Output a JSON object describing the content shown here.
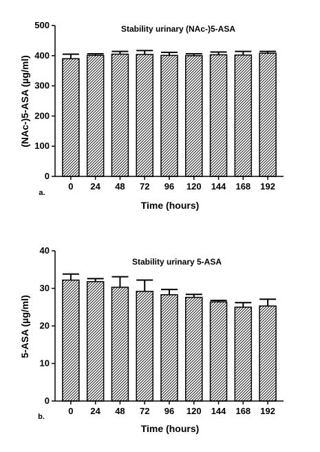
{
  "chart_data": [
    {
      "type": "bar",
      "panel_label": "a.",
      "title": "Stability urinary (NAc-)5-ASA",
      "xlabel": "Time (hours)",
      "ylabel": "(NAc-)5-ASA (µg/ml)",
      "categories": [
        "0",
        "24",
        "48",
        "72",
        "96",
        "120",
        "144",
        "168",
        "192"
      ],
      "values": [
        390,
        401,
        405,
        404,
        401,
        400,
        403,
        402,
        408
      ],
      "errors": [
        15,
        5,
        9,
        13,
        10,
        6,
        9,
        12,
        6
      ],
      "ylim": [
        0,
        500
      ],
      "yticks": [
        "0",
        "100",
        "200",
        "300",
        "400",
        "500"
      ],
      "bar_pattern": "diagonal hatch",
      "bar_color": "#000000"
    },
    {
      "type": "bar",
      "panel_label": "b.",
      "title": "Stability urinary 5-ASA",
      "xlabel": "Time (hours)",
      "ylabel": "5-ASA (µg/ml)",
      "categories": [
        "0",
        "24",
        "48",
        "72",
        "96",
        "120",
        "144",
        "168",
        "192"
      ],
      "values": [
        32.2,
        31.8,
        30.3,
        29.2,
        28.3,
        27.6,
        26.4,
        25.0,
        25.3
      ],
      "errors": [
        1.6,
        0.8,
        2.8,
        3.0,
        1.4,
        0.8,
        0.4,
        1.2,
        1.8
      ],
      "ylim": [
        0,
        40
      ],
      "yticks": [
        "0",
        "10",
        "20",
        "30",
        "40"
      ],
      "bar_pattern": "diagonal hatch",
      "bar_color": "#000000"
    }
  ]
}
